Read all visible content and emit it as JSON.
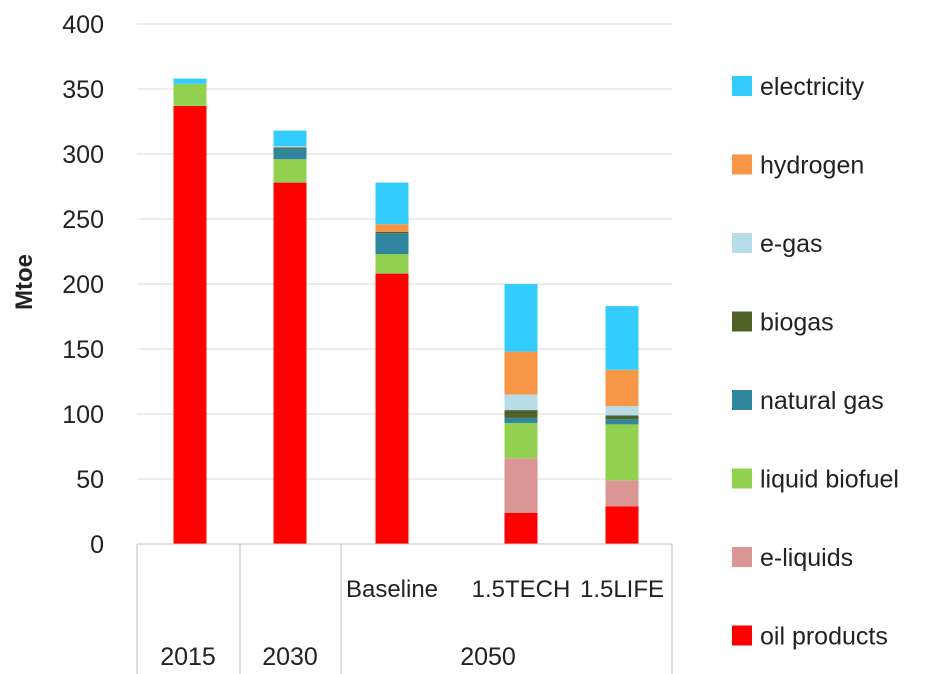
{
  "chart_data": {
    "type": "bar",
    "stacked": true,
    "ylabel": "Mtoe",
    "ylim": [
      0,
      400
    ],
    "yticks": [
      0,
      50,
      100,
      150,
      200,
      250,
      300,
      350,
      400
    ],
    "grid": true,
    "legend_position": "right",
    "categories": [
      "2015",
      "2030",
      "Baseline",
      "1.5TECH",
      "1.5LIFE"
    ],
    "groups": [
      {
        "label": "2015",
        "categories": [
          "2015"
        ]
      },
      {
        "label": "2030",
        "categories": [
          "2030"
        ]
      },
      {
        "label": "2050",
        "categories": [
          "Baseline",
          "1.5TECH",
          "1.5LIFE"
        ]
      }
    ],
    "series": [
      {
        "name": "oil products",
        "color": "#ff0000",
        "values": [
          337,
          278,
          208,
          24,
          29
        ]
      },
      {
        "name": "e-liquids",
        "color": "#da9694",
        "values": [
          0,
          0,
          0,
          42,
          20
        ]
      },
      {
        "name": "liquid biofuel",
        "color": "#92d050",
        "values": [
          17,
          18,
          15,
          27,
          43
        ]
      },
      {
        "name": "natural gas",
        "color": "#31859c",
        "values": [
          0,
          8,
          16,
          4,
          4
        ]
      },
      {
        "name": "biogas",
        "color": "#4f6228",
        "values": [
          0,
          1,
          1,
          6,
          3
        ]
      },
      {
        "name": "e-gas",
        "color": "#b7dee8",
        "values": [
          0,
          1,
          0,
          12,
          7
        ]
      },
      {
        "name": "hydrogen",
        "color": "#f79646",
        "values": [
          0,
          0,
          6,
          33,
          28
        ]
      },
      {
        "name": "electricity",
        "color": "#33ccff",
        "values": [
          4,
          12,
          32,
          52,
          49
        ]
      }
    ]
  }
}
